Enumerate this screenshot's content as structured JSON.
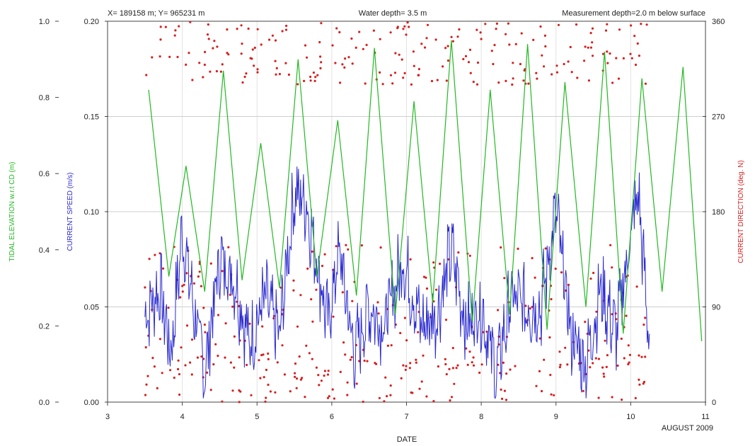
{
  "chart_data": {
    "type": "line",
    "header": {
      "location": "X= 189158 m; Y= 965231 m",
      "water_depth": "Water depth= 3.5 m",
      "measurement_depth": "Measurement depth=2.0 m below surface"
    },
    "xlabel": "DATE",
    "x_note": "AUGUST 2009",
    "xlim": [
      3,
      11
    ],
    "x_ticks": [
      "3",
      "4",
      "5",
      "6",
      "7",
      "8",
      "9",
      "10",
      "11"
    ],
    "axes": {
      "elevation": {
        "label": "TIDAL ELEVATION w.r.t CD (m)",
        "ylim": [
          0,
          1
        ],
        "ticks": [
          "0.0",
          "0.2",
          "0.4",
          "0.6",
          "0.8",
          "1.0"
        ],
        "color": "#22b822"
      },
      "speed": {
        "label": "CURRENT SPEED (m/s)",
        "ylim": [
          0,
          0.2
        ],
        "ticks": [
          "0.00",
          "0.05",
          "0.10",
          "0.15",
          "0.20"
        ],
        "color": "#2a2ad0"
      },
      "direction": {
        "label": "CURRENT DIRECTION (deg. N)",
        "ylim": [
          0,
          360
        ],
        "ticks": [
          "0",
          "90",
          "180",
          "270",
          "360"
        ],
        "color": "#d42020"
      }
    },
    "series": [
      {
        "name": "Tidal elevation",
        "axis": "elevation",
        "x": [
          3.55,
          3.82,
          4.05,
          4.3,
          4.55,
          4.8,
          5.05,
          5.3,
          5.55,
          5.8,
          6.08,
          6.33,
          6.57,
          6.85,
          7.1,
          7.35,
          7.6,
          7.88,
          8.12,
          8.38,
          8.62,
          8.88,
          9.12,
          9.4,
          9.65,
          9.9,
          10.15,
          10.42,
          10.7,
          10.95
        ],
        "values": [
          0.82,
          0.33,
          0.62,
          0.29,
          0.87,
          0.32,
          0.68,
          0.3,
          0.9,
          0.33,
          0.74,
          0.28,
          0.93,
          0.23,
          0.79,
          0.26,
          0.95,
          0.21,
          0.82,
          0.23,
          0.94,
          0.19,
          0.84,
          0.25,
          0.92,
          0.18,
          0.85,
          0.29,
          0.88,
          0.16
        ]
      },
      {
        "name": "Current speed",
        "axis": "speed",
        "start": 3.5,
        "end": 10.25,
        "anchors_x": [
          3.5,
          3.7,
          3.85,
          4.0,
          4.15,
          4.3,
          4.5,
          4.7,
          4.9,
          5.1,
          5.3,
          5.5,
          5.65,
          5.8,
          5.95,
          6.1,
          6.3,
          6.5,
          6.7,
          6.95,
          7.2,
          7.4,
          7.6,
          7.8,
          8.0,
          8.2,
          8.4,
          8.6,
          8.8,
          9.0,
          9.2,
          9.4,
          9.6,
          9.8,
          9.95,
          10.1,
          10.25
        ],
        "anchors_y": [
          0.045,
          0.06,
          0.025,
          0.09,
          0.05,
          0.015,
          0.075,
          0.065,
          0.03,
          0.055,
          0.035,
          0.11,
          0.105,
          0.075,
          0.04,
          0.08,
          0.025,
          0.05,
          0.04,
          0.075,
          0.04,
          0.045,
          0.08,
          0.04,
          0.05,
          0.015,
          0.055,
          0.05,
          0.05,
          0.1,
          0.035,
          0.02,
          0.06,
          0.035,
          0.075,
          0.11,
          0.03
        ],
        "noise": 0.018
      },
      {
        "name": "Current direction",
        "axis": "direction",
        "start": 3.5,
        "end": 10.25,
        "count": 560
      }
    ]
  }
}
